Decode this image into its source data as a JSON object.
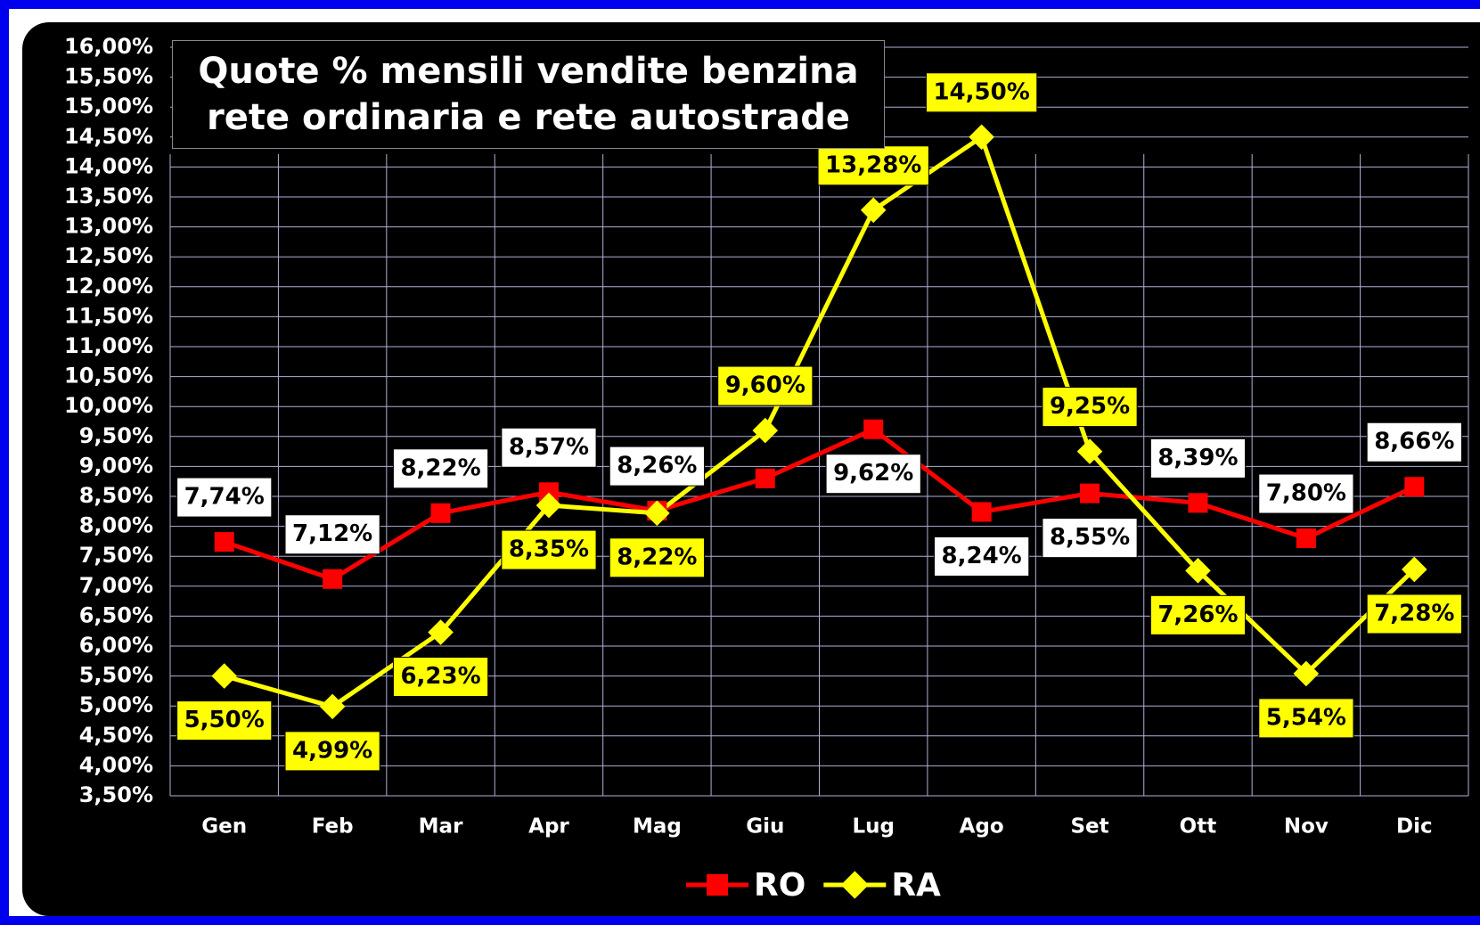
{
  "chart_data": {
    "type": "line",
    "title": "Quote % mensili vendite benzina\nrete ordinaria e rete autostrade",
    "categories": [
      "Gen",
      "Feb",
      "Mar",
      "Apr",
      "Mag",
      "Giu",
      "Lug",
      "Ago",
      "Set",
      "Ott",
      "Nov",
      "Dic"
    ],
    "series": [
      {
        "name": "RO",
        "color": "#ff0000",
        "marker": "square",
        "values": [
          7.74,
          7.12,
          8.22,
          8.57,
          8.26,
          8.8,
          9.62,
          8.24,
          8.55,
          8.39,
          7.8,
          8.66
        ],
        "value_labels": [
          "7,74%",
          "7,12%",
          "8,22%",
          "8,57%",
          "8,26%",
          null,
          "9,62%",
          "8,24%",
          "8,55%",
          "8,39%",
          "7,80%",
          "8,66%"
        ]
      },
      {
        "name": "RA",
        "color": "#ffff00",
        "marker": "diamond",
        "values": [
          5.5,
          4.99,
          6.23,
          8.35,
          8.22,
          9.6,
          13.28,
          14.5,
          9.25,
          7.26,
          5.54,
          7.28
        ],
        "value_labels": [
          "5,50%",
          "4,99%",
          "6,23%",
          "8,35%",
          "8,22%",
          "9,60%",
          "13,28%",
          "14,50%",
          "9,25%",
          "7,26%",
          "5,54%",
          "7,28%"
        ]
      }
    ],
    "ylim": [
      3.5,
      16
    ],
    "yticks": [
      {
        "value": 3.5,
        "label": "3,50%"
      },
      {
        "value": 4,
        "label": "4,00%"
      },
      {
        "value": 4.5,
        "label": "4,50%"
      },
      {
        "value": 5,
        "label": "5,00%"
      },
      {
        "value": 5.5,
        "label": "5,50%"
      },
      {
        "value": 6,
        "label": "6,00%"
      },
      {
        "value": 6.5,
        "label": "6,50%"
      },
      {
        "value": 7,
        "label": "7,00%"
      },
      {
        "value": 7.5,
        "label": "7,50%"
      },
      {
        "value": 8,
        "label": "8,00%"
      },
      {
        "value": 8.5,
        "label": "8,50%"
      },
      {
        "value": 9,
        "label": "9,00%"
      },
      {
        "value": 9.5,
        "label": "9,50%"
      },
      {
        "value": 10,
        "label": "10,00%"
      },
      {
        "value": 10.5,
        "label": "10,50%"
      },
      {
        "value": 11,
        "label": "11,00%"
      },
      {
        "value": 11.5,
        "label": "11,50%"
      },
      {
        "value": 12,
        "label": "12,00%"
      },
      {
        "value": 12.5,
        "label": "12,50%"
      },
      {
        "value": 13,
        "label": "13,00%"
      },
      {
        "value": 13.5,
        "label": "13,50%"
      },
      {
        "value": 14,
        "label": "14,00%"
      },
      {
        "value": 14.5,
        "label": "14,50%"
      },
      {
        "value": 15,
        "label": "15,00%"
      },
      {
        "value": 15.5,
        "label": "15,50%"
      },
      {
        "value": 16,
        "label": "16,00%"
      }
    ],
    "grid": true,
    "legend": "bottom"
  }
}
